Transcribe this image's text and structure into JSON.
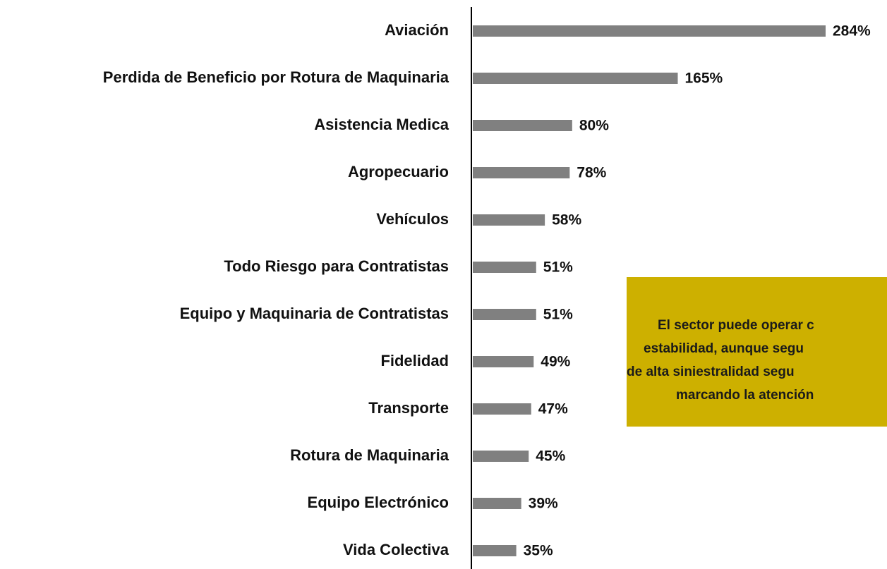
{
  "chart_data": {
    "type": "hbar",
    "categories": [
      "Aviación",
      "Perdida de Beneficio por Rotura de Maquinaria",
      "Asistencia Medica",
      "Agropecuario",
      "Vehículos",
      "Todo Riesgo para Contratistas",
      "Equipo y Maquinaria de Contratistas",
      "Fidelidad",
      "Transporte",
      "Rotura de Maquinaria",
      "Equipo Electrónico",
      "Vida Colectiva"
    ],
    "values": [
      284,
      165,
      80,
      78,
      58,
      51,
      51,
      49,
      47,
      45,
      39,
      35
    ],
    "value_labels": [
      "284%",
      "165%",
      "80%",
      "78%",
      "58%",
      "51%",
      "51%",
      "49%",
      "47%",
      "45%",
      "39%",
      "35%"
    ],
    "color": "#808080",
    "annotation": {
      "color": "#cdb000",
      "lines": [
        "El sector puede operar c",
        "estabilidad, aunque segu",
        "de alta siniestralidad segu",
        "marcando la atención"
      ]
    }
  }
}
